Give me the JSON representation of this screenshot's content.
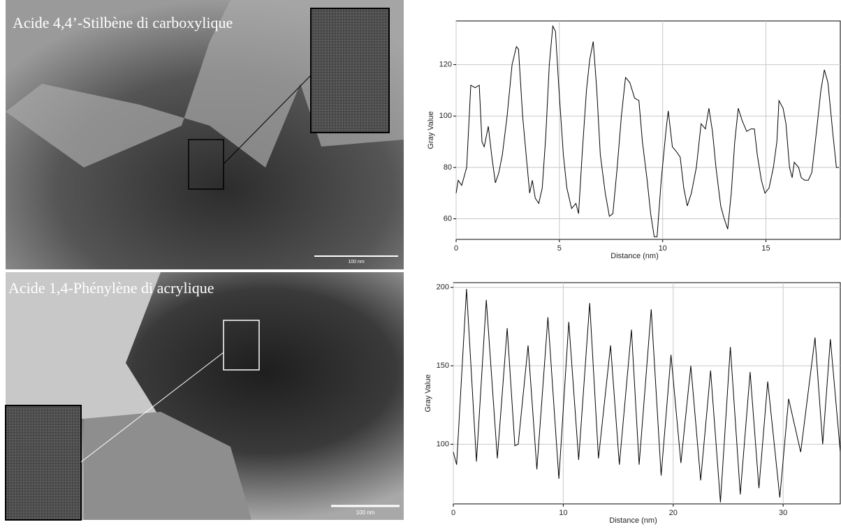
{
  "images": [
    {
      "caption": "Acide 4,4’-Stilbène di carboxylique",
      "scale_bar": "100 nm"
    },
    {
      "caption": "Acide 1,4-Phénylène di acrylique",
      "scale_bar": "100 nm"
    }
  ],
  "chart_data": [
    {
      "type": "line",
      "xlabel": "Distance (nm)",
      "ylabel": "Gray Value",
      "color": "#000000",
      "grid": true,
      "xlim": [
        0,
        18.6
      ],
      "ylim": [
        52,
        137
      ],
      "xticks": [
        0,
        5,
        10,
        15
      ],
      "yticks": [
        60,
        80,
        100,
        120
      ],
      "x": [
        0,
        0.1,
        0.27,
        0.51,
        0.71,
        0.92,
        1.12,
        1.25,
        1.36,
        1.56,
        1.73,
        1.9,
        2.07,
        2.24,
        2.47,
        2.71,
        2.92,
        3.02,
        3.22,
        3.39,
        3.56,
        3.69,
        3.83,
        4.0,
        4.17,
        4.34,
        4.51,
        4.68,
        4.81,
        4.98,
        5.19,
        5.36,
        5.59,
        5.8,
        5.93,
        6.1,
        6.31,
        6.47,
        6.64,
        6.81,
        6.98,
        7.22,
        7.42,
        7.59,
        7.8,
        8.0,
        8.2,
        8.41,
        8.64,
        8.85,
        9.02,
        9.25,
        9.42,
        9.59,
        9.73,
        9.93,
        10.17,
        10.27,
        10.47,
        10.68,
        10.85,
        11.02,
        11.19,
        11.39,
        11.63,
        11.86,
        12.07,
        12.24,
        12.41,
        12.58,
        12.81,
        12.98,
        13.15,
        13.32,
        13.49,
        13.66,
        13.86,
        14.07,
        14.27,
        14.44,
        14.58,
        14.78,
        14.95,
        15.15,
        15.36,
        15.53,
        15.63,
        15.83,
        15.97,
        16.14,
        16.27,
        16.37,
        16.58,
        16.71,
        16.88,
        17.05,
        17.22,
        17.46,
        17.66,
        17.83,
        18.0,
        18.24,
        18.41,
        18.54
      ],
      "values": [
        70,
        75,
        73,
        80,
        112,
        111,
        112,
        90,
        88,
        96,
        84,
        74,
        78,
        85,
        100,
        120,
        127,
        126,
        100,
        85,
        70,
        75,
        68,
        66,
        72,
        92,
        120,
        135,
        133,
        110,
        85,
        72,
        64,
        66,
        62,
        85,
        110,
        122,
        129,
        110,
        85,
        70,
        61,
        62,
        80,
        100,
        115,
        113,
        107,
        106,
        90,
        75,
        62,
        53,
        53,
        75,
        95,
        102,
        88,
        86,
        84,
        72,
        65,
        70,
        80,
        97,
        95,
        103,
        94,
        80,
        65,
        60,
        56,
        70,
        90,
        103,
        98,
        94,
        95,
        95,
        85,
        75,
        70,
        72,
        80,
        90,
        106,
        103,
        97,
        80,
        76,
        82,
        80,
        76,
        75,
        75,
        78,
        95,
        110,
        118,
        113,
        93,
        80,
        80
      ]
    },
    {
      "type": "line",
      "xlabel": "Distance (nm)",
      "ylabel": "Gray Value",
      "color": "#000000",
      "grid": true,
      "xlim": [
        0,
        35.2
      ],
      "ylim": [
        62,
        203
      ],
      "xticks": [
        0,
        10,
        20,
        30
      ],
      "yticks": [
        100,
        150,
        200
      ],
      "x": [
        0,
        0.3,
        1.2,
        2.1,
        3.0,
        4.0,
        4.9,
        5.6,
        5.9,
        6.8,
        7.6,
        8.6,
        9.6,
        10.5,
        11.4,
        12.4,
        13.2,
        14.3,
        15.1,
        16.2,
        16.9,
        18.0,
        18.9,
        19.8,
        20.7,
        21.6,
        22.5,
        23.4,
        24.3,
        25.2,
        26.1,
        27.0,
        27.8,
        28.6,
        29.7,
        30.5,
        31.6,
        32.9,
        33.6,
        34.3,
        35.2
      ],
      "values": [
        95,
        87,
        199,
        89,
        192,
        91,
        174,
        99,
        100,
        163,
        84,
        181,
        78,
        178,
        90,
        190,
        91,
        163,
        87,
        173,
        87,
        186,
        80,
        157,
        88,
        150,
        77,
        147,
        63,
        162,
        68,
        146,
        72,
        140,
        66,
        129,
        95,
        168,
        100,
        167,
        95
      ]
    }
  ]
}
